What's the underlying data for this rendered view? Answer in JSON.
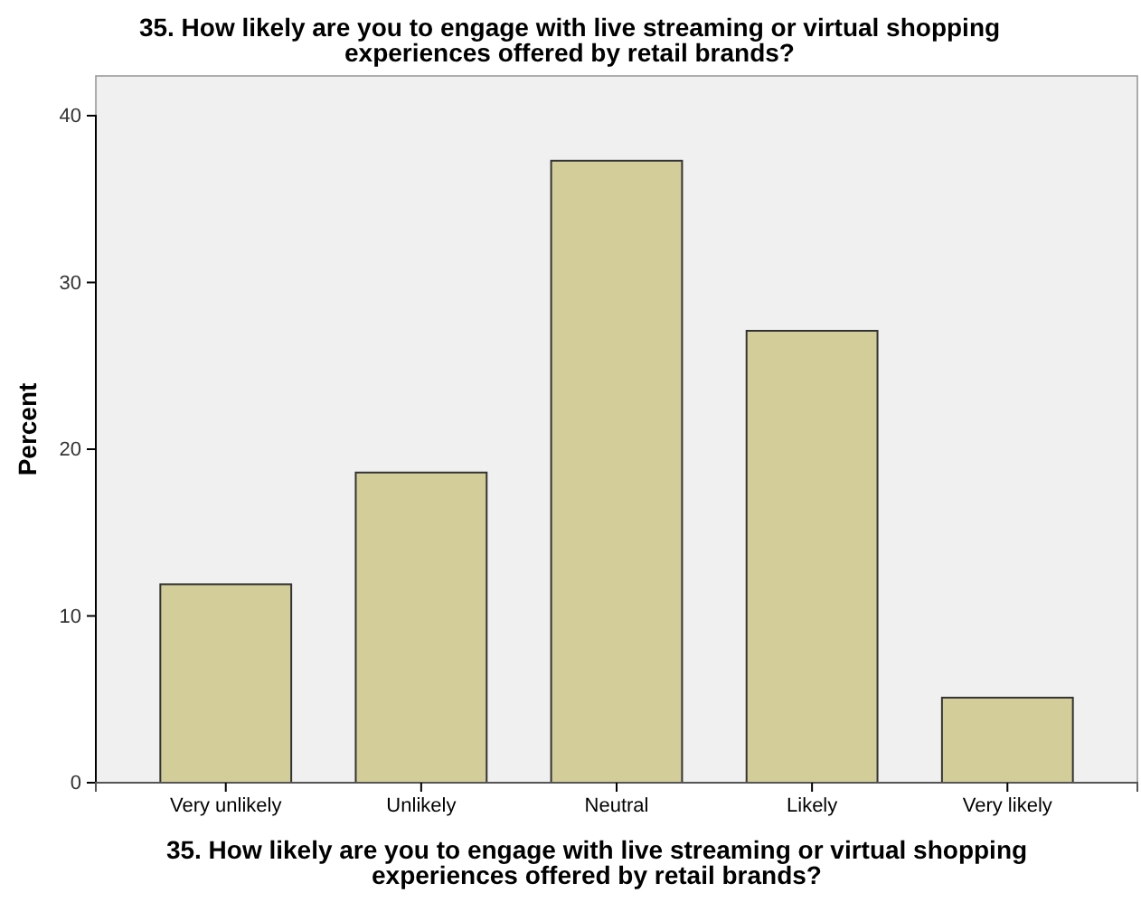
{
  "chart_data": {
    "type": "bar",
    "title": "35. How likely are you to engage with live streaming or virtual shopping experiences offered by retail brands?",
    "xlabel": "35. How likely are you to engage with live streaming or virtual shopping experiences offered by retail brands?",
    "ylabel": "Percent",
    "categories": [
      "Very unlikely",
      "Unlikely",
      "Neutral",
      "Likely",
      "Very likely"
    ],
    "values": [
      11.9,
      18.6,
      37.3,
      27.1,
      5.1
    ],
    "color": "#d3ce99",
    "ylim": [
      0,
      40
    ],
    "yticks": [
      0,
      10,
      20,
      30,
      40
    ],
    "grid": false
  }
}
